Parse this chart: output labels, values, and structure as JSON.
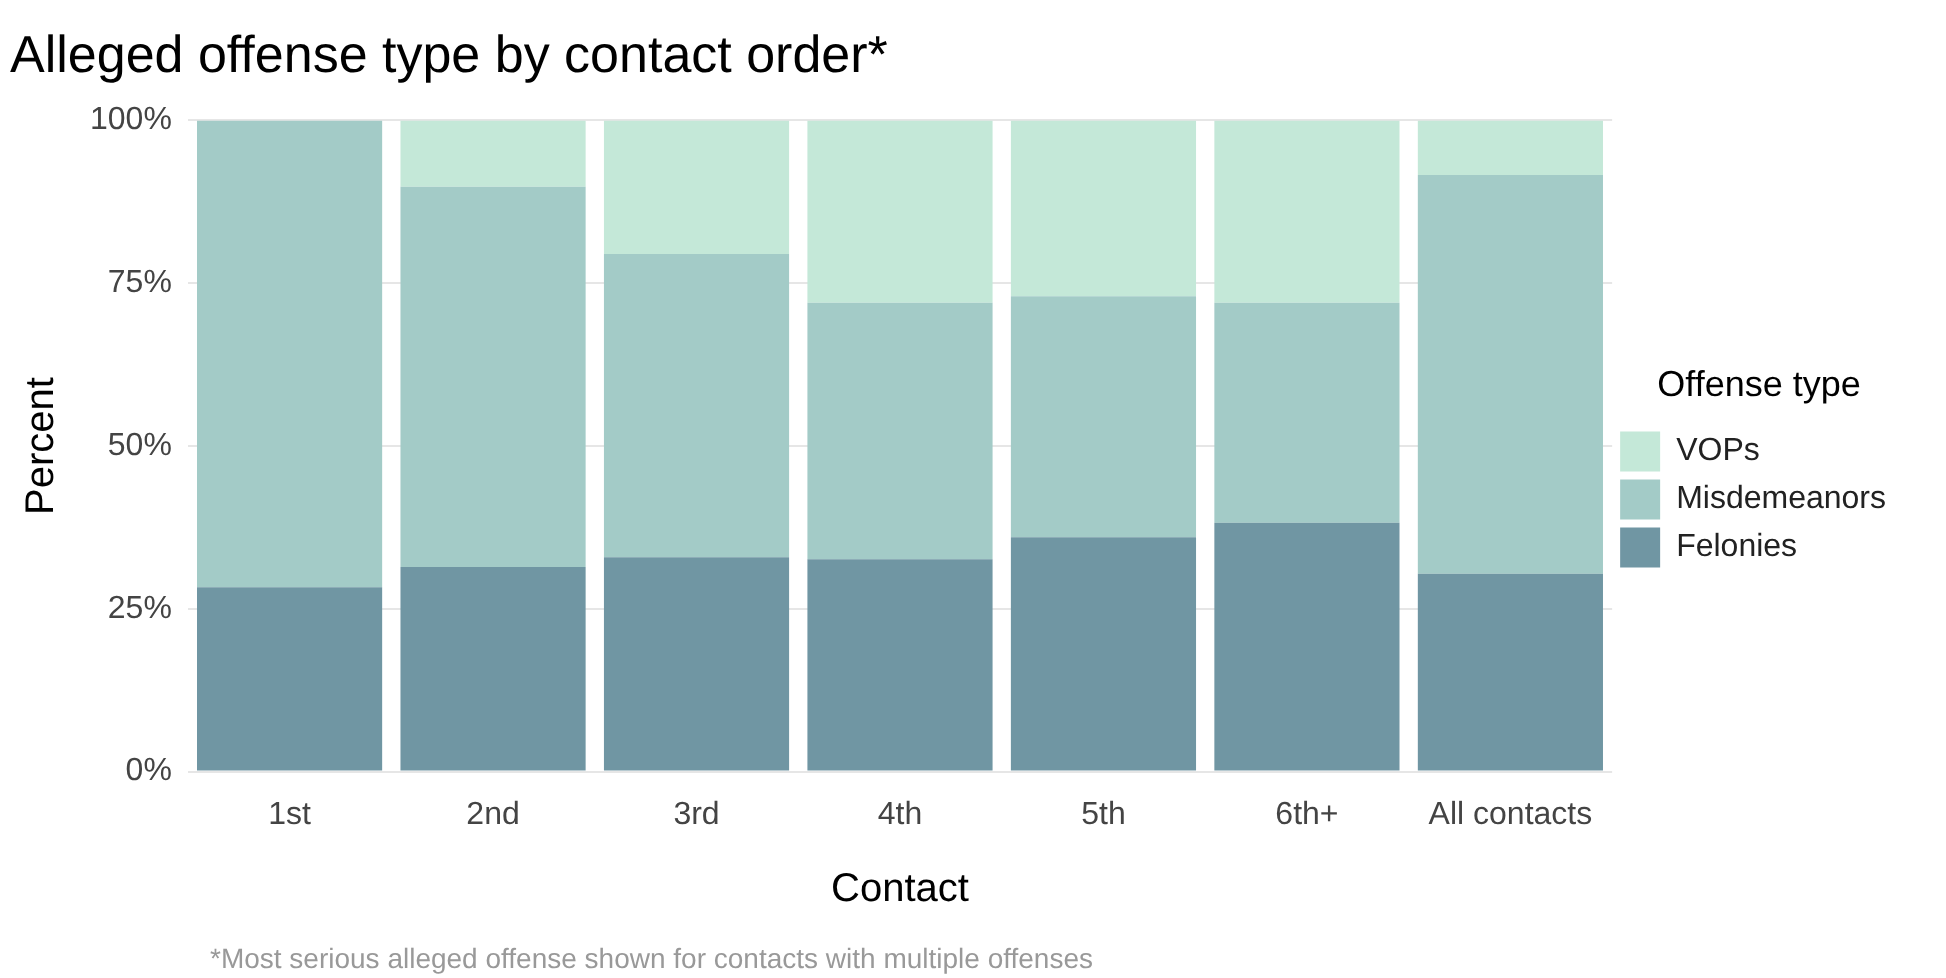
{
  "chart_data": {
    "type": "bar",
    "title": "Alleged offense type by contact order*",
    "xlabel": "Contact",
    "ylabel": "Percent",
    "legend_title": "Offense type",
    "categories": [
      "1st",
      "2nd",
      "3rd",
      "4th",
      "5th",
      "6th+",
      "All contacts"
    ],
    "stacked": true,
    "series": [
      {
        "name": "Felonies",
        "color": "#7096a3",
        "values": [
          28.3,
          31.4,
          32.9,
          32.6,
          36.0,
          38.2,
          30.4
        ]
      },
      {
        "name": "Misdemeanors",
        "color": "#a3cbc7",
        "values": [
          71.7,
          58.4,
          46.6,
          39.4,
          37.0,
          33.8,
          61.2
        ]
      },
      {
        "name": "VOPs",
        "color": "#c4e8d8",
        "values": [
          0,
          10.2,
          20.5,
          28.0,
          27.0,
          28.0,
          8.4
        ]
      }
    ],
    "ylim": [
      0,
      100
    ],
    "yticks": [
      {
        "value": 0,
        "label": "0%"
      },
      {
        "value": 25,
        "label": "25%"
      },
      {
        "value": 50,
        "label": "50%"
      },
      {
        "value": 75,
        "label": "75%"
      },
      {
        "value": 100,
        "label": "100%"
      }
    ],
    "grid": "y",
    "legend": "right",
    "annotations": [
      "*Most serious alleged offense shown for contacts with multiple offenses"
    ]
  }
}
